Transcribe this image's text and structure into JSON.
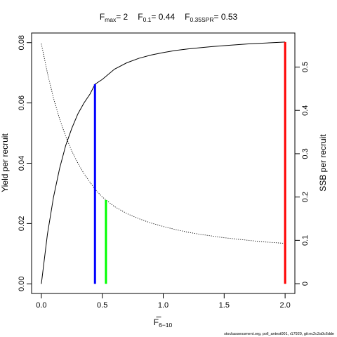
{
  "chart_data": {
    "type": "line",
    "title": {
      "fmax": {
        "main": "F",
        "sub": "max",
        "value": "= 2"
      },
      "f01": {
        "main": "F",
        "sub": "0.1",
        "value": "= 0.44"
      },
      "fspr": {
        "main": "F",
        "sub": "0.35SPR",
        "value": "= 0.53"
      }
    },
    "xlabel": {
      "main": "F",
      "sub": "6−10"
    },
    "ylabel_left": "Yield per recruit",
    "ylabel_right": "SSB per recruit",
    "xlim": [
      -0.08,
      2.08
    ],
    "ylim_left": [
      -0.0032,
      0.0832
    ],
    "ylim_right": [
      -0.0226,
      0.5786
    ],
    "x_ticks": [
      0,
      0.5,
      1,
      1.5,
      2
    ],
    "x_tick_labels": [
      "0.0",
      "0.5",
      "1.0",
      "1.5",
      "2.0"
    ],
    "y_left_ticks": [
      0,
      0.02,
      0.04,
      0.06,
      0.08
    ],
    "y_left_tick_labels": [
      "0.00",
      "0.02",
      "0.04",
      "0.06",
      "0.08"
    ],
    "y_right_ticks": [
      0,
      0.1,
      0.2,
      0.3,
      0.4,
      0.5
    ],
    "y_right_tick_labels": [
      "0",
      "0.1",
      "0.2",
      "0.3",
      "0.4",
      "0.5"
    ],
    "series": [
      {
        "axis": "left",
        "style": "solid",
        "color": "#000000",
        "x": [
          0,
          0.05,
          0.1,
          0.15,
          0.2,
          0.25,
          0.3,
          0.35,
          0.4,
          0.44,
          0.5,
          0.6,
          0.7,
          0.8,
          0.9,
          1.0,
          1.1,
          1.2,
          1.3,
          1.4,
          1.5,
          1.6,
          1.7,
          1.8,
          1.9,
          2.0
        ],
        "y": [
          0,
          0.0165,
          0.0288,
          0.0383,
          0.0459,
          0.0516,
          0.0564,
          0.06,
          0.063,
          0.0662,
          0.0678,
          0.0712,
          0.0733,
          0.0748,
          0.0759,
          0.0767,
          0.0774,
          0.0779,
          0.0783,
          0.0787,
          0.079,
          0.0793,
          0.0796,
          0.0798,
          0.08,
          0.0802
        ]
      },
      {
        "axis": "right",
        "style": "dotted",
        "color": "#000000",
        "x": [
          0,
          0.05,
          0.1,
          0.15,
          0.2,
          0.25,
          0.3,
          0.35,
          0.4,
          0.44,
          0.5,
          0.6,
          0.7,
          0.8,
          0.9,
          1.0,
          1.1,
          1.2,
          1.3,
          1.4,
          1.5,
          1.6,
          1.7,
          1.8,
          1.9,
          2.0
        ],
        "y": [
          0.554,
          0.486,
          0.428,
          0.38,
          0.34,
          0.306,
          0.278,
          0.254,
          0.234,
          0.218,
          0.2,
          0.178,
          0.162,
          0.15,
          0.14,
          0.132,
          0.125,
          0.119,
          0.114,
          0.11,
          0.106,
          0.103,
          0.1,
          0.097,
          0.095,
          0.093
        ]
      }
    ],
    "reference_lines": [
      {
        "name": "F0.1",
        "x": 0.44,
        "y_top": 0.0662,
        "color": "#0000ff"
      },
      {
        "name": "F0.35SPR",
        "x": 0.53,
        "y_top": 0.0278,
        "color": "#00ff00"
      },
      {
        "name": "Fmax",
        "x": 2.0,
        "y_top": 0.0802,
        "color": "#ff0000"
      }
    ],
    "grid": false,
    "legend": "none"
  },
  "footer_credit": "stockassessment.org, poll_antest001, r17920, git:ec2c2a0c6dde"
}
